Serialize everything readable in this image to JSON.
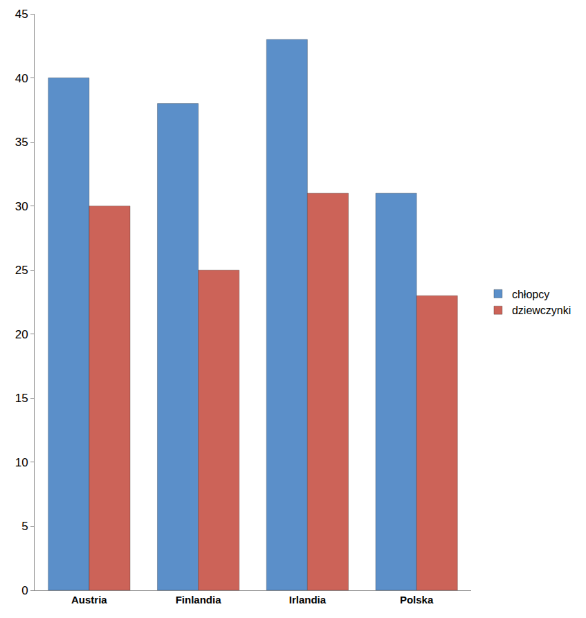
{
  "chart_data": {
    "type": "bar",
    "categories": [
      "Austria",
      "Finlandia",
      "Irlandia",
      "Polska"
    ],
    "series": [
      {
        "name": "chłopcy",
        "color": "#5b8fc9",
        "values": [
          40,
          38,
          43,
          31
        ]
      },
      {
        "name": "dziewczynki",
        "color": "#cc6358",
        "values": [
          30,
          25,
          31,
          23
        ]
      }
    ],
    "ylim": [
      0,
      45
    ],
    "yticks": [
      0,
      5,
      10,
      15,
      20,
      25,
      30,
      35,
      40,
      45
    ],
    "grid": false,
    "legend": "right"
  }
}
